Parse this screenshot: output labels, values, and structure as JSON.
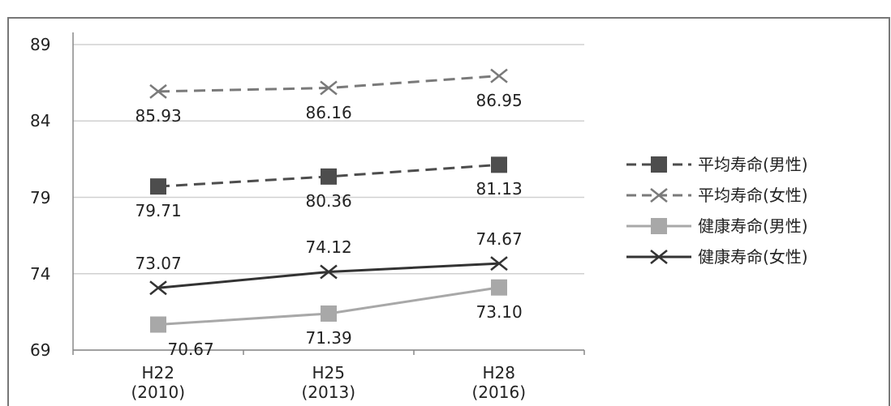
{
  "chart_data": {
    "type": "line",
    "categories": [
      "H22\n(2010)",
      "H25\n(2013)",
      "H28\n(2016)"
    ],
    "series": [
      {
        "name": "平均寿命(男性)",
        "color": "#4d4d4d",
        "dash": true,
        "marker": "square",
        "values": [
          79.71,
          80.36,
          81.13
        ]
      },
      {
        "name": "平均寿命(女性)",
        "color": "#7a7a7a",
        "dash": true,
        "marker": "x",
        "values": [
          85.93,
          86.16,
          86.95
        ]
      },
      {
        "name": "健康寿命(男性)",
        "color": "#a8a8a8",
        "dash": false,
        "marker": "square",
        "values": [
          70.67,
          71.39,
          73.1
        ],
        "value_labels": [
          "70.67",
          "71.39",
          "73.10"
        ]
      },
      {
        "name": "健康寿命(女性)",
        "color": "#333333",
        "dash": false,
        "marker": "x",
        "values": [
          73.07,
          74.12,
          74.67
        ]
      }
    ],
    "ylim": [
      69,
      89
    ],
    "yticks": [
      69,
      74,
      79,
      84,
      89
    ],
    "grid": true,
    "legend": "right"
  }
}
